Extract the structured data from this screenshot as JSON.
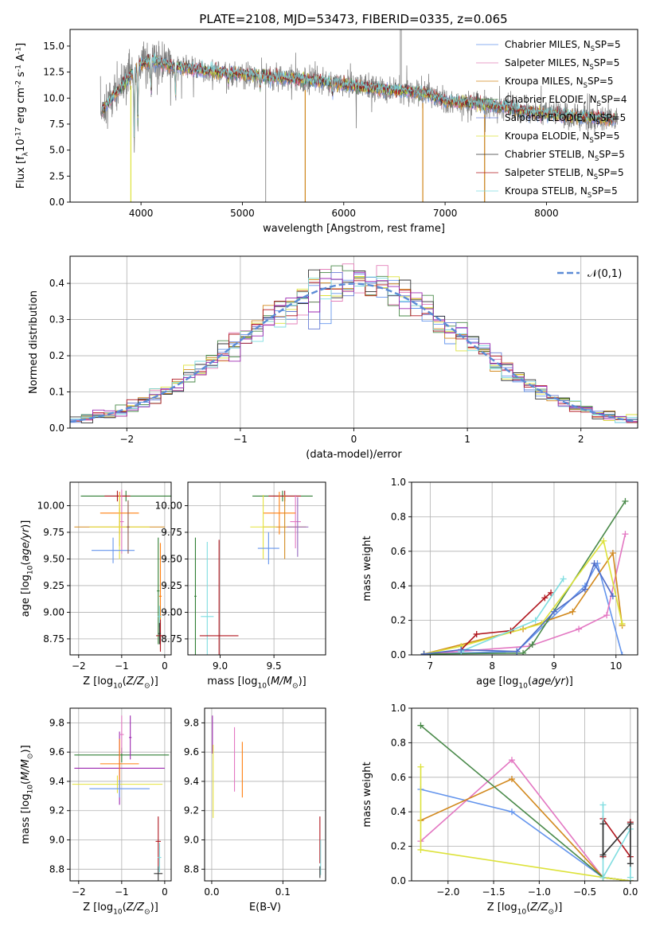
{
  "title": "PLATE=2108, MJD=53473, FIBERID=0335, z=0.065",
  "chart_data": [
    {
      "id": "spectrum",
      "type": "line",
      "xlabel": "wavelength [Angstrom, rest frame]",
      "ylabel": "Flux [f$_\\lambda$10$^{-17}$ erg cm$^{-2}$ s$^{-1}$ A$^{-1}$]",
      "xlim": [
        3300,
        8900
      ],
      "ylim": [
        0,
        16.6
      ],
      "xticks": [
        4000,
        5000,
        6000,
        7000,
        8000
      ],
      "yticks": [
        0.0,
        2.5,
        5.0,
        7.5,
        10.0,
        12.5,
        15.0
      ],
      "legend_position": "top-right",
      "series": [
        {
          "name": "Chabrier MILES, N_SSP=5",
          "color": "#6495ed"
        },
        {
          "name": "Salpeter MILES, N_SSP=5",
          "color": "#e37fb9"
        },
        {
          "name": "Kroupa MILES, N_SSP=5",
          "color": "#d2891e"
        },
        {
          "name": "Chabrier ELODIE, N_SSP=4",
          "color": "#4a8a4a"
        },
        {
          "name": "Salpeter ELODIE, N_SSP=5",
          "color": "#6a7fd6"
        },
        {
          "name": "Kroupa ELODIE, N_SSP=5",
          "color": "#dde23a"
        },
        {
          "name": "Chabrier STELIB, N_SSP=5",
          "color": "#333333"
        },
        {
          "name": "Salpeter STELIB, N_SSP=5",
          "color": "#b0161e"
        },
        {
          "name": "Kroupa STELIB, N_SSP=5",
          "color": "#7fdde0"
        }
      ],
      "data_color": "#808080",
      "continuum": {
        "x": [
          3600,
          3700,
          3800,
          3900,
          4000,
          4100,
          4300,
          4500,
          4700,
          5000,
          5300,
          5600,
          6000,
          6300,
          6600,
          6800,
          7000,
          7300,
          7600,
          7800,
          8000,
          8300,
          8600,
          8700
        ],
        "y": [
          8.6,
          9.8,
          11.0,
          12.2,
          13.3,
          13.6,
          13.1,
          12.8,
          12.6,
          12.3,
          12.0,
          11.8,
          11.3,
          10.9,
          10.7,
          10.5,
          9.7,
          9.5,
          9.1,
          8.7,
          8.5,
          8.2,
          8.0,
          7.9
        ]
      },
      "absorption_lines": [
        {
          "x": 3933,
          "y": 5.5
        },
        {
          "x": 3968,
          "y": 7.5
        },
        {
          "x": 4100,
          "y": 10.5
        },
        {
          "x": 4340,
          "y": 10.2
        },
        {
          "x": 4861,
          "y": 11.3
        },
        {
          "x": 5175,
          "y": 10.9
        },
        {
          "x": 5890,
          "y": 10.2
        },
        {
          "x": 6563,
          "y": 11.0
        }
      ],
      "spikes": [
        {
          "x": 5230,
          "lo": 0.0,
          "hi": 12.0
        },
        {
          "x": 5620,
          "lo": 0.0,
          "hi": 11.5
        },
        {
          "x": 6563,
          "lo": 9.5,
          "hi": 16.6
        },
        {
          "x": 6780,
          "lo": 0.0,
          "hi": 11.0
        },
        {
          "x": 7390,
          "lo": 0.0,
          "hi": 10.8
        }
      ]
    },
    {
      "id": "residuals",
      "type": "line",
      "xlabel": "(data-model)/error",
      "ylabel": "Normed distribution",
      "xlim": [
        -2.5,
        2.5
      ],
      "ylim": [
        0,
        0.475
      ],
      "xticks": [
        -2,
        -1,
        0,
        1,
        2
      ],
      "yticks": [
        0.0,
        0.1,
        0.2,
        0.3,
        0.4
      ],
      "grid": true,
      "legend_position": "top-right",
      "legend_label": "$\\mathcal{N}(0,1)$",
      "gaussian": {
        "mu": 0,
        "sigma": 1,
        "color": "#5b8bd6"
      },
      "bin_width": 0.1
    },
    {
      "id": "age-vs-Z",
      "type": "scatter",
      "xlabel": "Z [log$_{10}$($Z/Z_\\odot$)]",
      "ylabel": "age  [log$_{10}$($age/yr$)]",
      "xlim": [
        -2.2,
        0.15
      ],
      "ylim": [
        8.6,
        10.22
      ],
      "xticks": [
        -2,
        -1,
        0
      ],
      "yticks": [
        8.75,
        9.0,
        9.25,
        9.5,
        9.75,
        10.0
      ],
      "grid": true,
      "points": [
        {
          "x": -0.9,
          "xerr": 1.05,
          "y": 10.09,
          "yerr": 0.05,
          "color": "#2e7d32"
        },
        {
          "x": -1.1,
          "xerr": 0.3,
          "y": 10.09,
          "yerr": 0.05,
          "color": "#b0161e"
        },
        {
          "x": -1.0,
          "xerr": 0.05,
          "y": 9.85,
          "yerr": 0.3,
          "color": "#e377c2"
        },
        {
          "x": -1.05,
          "xerr": 0.45,
          "y": 9.93,
          "yerr": 0.2,
          "color": "#ff7f0e"
        },
        {
          "x": -1.05,
          "xerr": 1.05,
          "y": 9.8,
          "yerr": 0.18,
          "color": "#d2891e"
        },
        {
          "x": -1.05,
          "xerr": 0.7,
          "y": 9.8,
          "yerr": 0.3,
          "color": "#e5e23a"
        },
        {
          "x": -1.2,
          "xerr": 0.5,
          "y": 9.58,
          "yerr": 0.12,
          "color": "#6495ed"
        },
        {
          "x": -0.85,
          "xerr": 0.03,
          "y": 9.8,
          "yerr": 0.25,
          "color": "#8c564b"
        },
        {
          "x": -0.15,
          "xerr": 0.03,
          "y": 9.2,
          "yerr": 0.5,
          "color": "#2e7d32"
        },
        {
          "x": -0.1,
          "xerr": 0.03,
          "y": 9.15,
          "yerr": 0.5,
          "color": "#ff7f0e"
        },
        {
          "x": -0.12,
          "xerr": 0.04,
          "y": 8.96,
          "yerr": 0.1,
          "color": "#7fdde0"
        },
        {
          "x": -0.1,
          "xerr": 0.1,
          "y": 8.78,
          "yerr": 0.15,
          "color": "#b0161e"
        },
        {
          "x": -0.12,
          "xerr": 0.03,
          "y": 8.8,
          "yerr": 0.1,
          "color": "#333333"
        }
      ]
    },
    {
      "id": "age-vs-mass",
      "type": "scatter",
      "xlabel": "mass [log$_{10}$($M/M_\\odot$)]",
      "ylabel": "",
      "xlim": [
        8.7,
        9.98
      ],
      "ylim": [
        8.6,
        10.22
      ],
      "xticks": [
        9.0,
        9.5
      ],
      "yticks": [
        8.75,
        9.0,
        9.25,
        9.5,
        9.75,
        10.0
      ],
      "grid": true,
      "points": [
        {
          "x": 9.58,
          "xerr": 0.28,
          "y": 10.09,
          "yerr": 0.05,
          "color": "#2e7d32"
        },
        {
          "x": 9.6,
          "xerr": 0.15,
          "y": 10.09,
          "yerr": 0.05,
          "color": "#b0161e"
        },
        {
          "x": 9.7,
          "xerr": 0.05,
          "y": 9.85,
          "yerr": 0.25,
          "color": "#e377c2"
        },
        {
          "x": 9.55,
          "xerr": 0.15,
          "y": 9.93,
          "yerr": 0.2,
          "color": "#ff7f0e"
        },
        {
          "x": 9.6,
          "xerr": 0.2,
          "y": 9.8,
          "yerr": 0.3,
          "color": "#d2891e"
        },
        {
          "x": 9.4,
          "xerr": 0.12,
          "y": 9.8,
          "yerr": 0.3,
          "color": "#e5e23a"
        },
        {
          "x": 9.45,
          "xerr": 0.1,
          "y": 9.6,
          "yerr": 0.15,
          "color": "#6495ed"
        },
        {
          "x": 9.72,
          "xerr": 0.1,
          "y": 9.8,
          "yerr": 0.28,
          "color": "#9467bd"
        },
        {
          "x": 8.77,
          "xerr": 0.01,
          "y": 9.15,
          "yerr": 0.55,
          "color": "#2e7d32"
        },
        {
          "x": 8.88,
          "xerr": 0.06,
          "y": 8.96,
          "yerr": 0.7,
          "color": "#7fdde0"
        },
        {
          "x": 8.99,
          "xerr": 0.18,
          "y": 8.78,
          "yerr": 0.9,
          "color": "#b0161e"
        }
      ]
    },
    {
      "id": "mass-weight-vs-age",
      "type": "line",
      "xlabel": "age  [log$_{10}$($age/yr$)]",
      "ylabel": "mass weight",
      "xlim": [
        6.7,
        10.35
      ],
      "ylim": [
        0,
        1.0
      ],
      "xticks": [
        7,
        8,
        9,
        10
      ],
      "yticks": [
        0.0,
        0.2,
        0.4,
        0.6,
        0.8,
        1.0
      ],
      "grid": true,
      "series": [
        {
          "color": "#6495ed",
          "x": [
            6.9,
            8.4,
            9.5,
            9.7,
            10.1
          ],
          "y": [
            0.005,
            0.02,
            0.4,
            0.53,
            0.0
          ]
        },
        {
          "color": "#e377c2",
          "x": [
            6.9,
            8.6,
            9.4,
            9.85,
            10.15
          ],
          "y": [
            0.005,
            0.05,
            0.15,
            0.23,
            0.7
          ]
        },
        {
          "color": "#d2891e",
          "x": [
            6.9,
            8.5,
            9.3,
            9.95,
            10.1
          ],
          "y": [
            0.005,
            0.15,
            0.25,
            0.59,
            0.17
          ]
        },
        {
          "color": "#4a8a4a",
          "x": [
            6.9,
            8.5,
            8.65,
            10.15
          ],
          "y": [
            0.005,
            0.01,
            0.06,
            0.89
          ]
        },
        {
          "color": "#dde23a",
          "x": [
            6.9,
            7.5,
            8.8,
            9.8,
            10.1
          ],
          "y": [
            0.005,
            0.05,
            0.18,
            0.66,
            0.18
          ]
        },
        {
          "color": "#b0161e",
          "x": [
            7.5,
            7.75,
            8.3,
            8.85,
            8.95
          ],
          "y": [
            0.03,
            0.12,
            0.14,
            0.33,
            0.36
          ]
        },
        {
          "color": "#7fdde0",
          "x": [
            7.5,
            8.7,
            9.15
          ],
          "y": [
            0.02,
            0.2,
            0.44
          ]
        },
        {
          "color": "#4e6cc7",
          "x": [
            6.9,
            7.5,
            8.4,
            9.0,
            9.5,
            9.65,
            9.95
          ],
          "y": [
            0.005,
            0.03,
            0.02,
            0.25,
            0.38,
            0.53,
            0.34
          ]
        }
      ]
    },
    {
      "id": "mass-vs-Z",
      "type": "scatter",
      "xlabel": "Z [log$_{10}$($Z/Z_\\odot$)]",
      "ylabel": "mass [log$_{10}$($M/M_\\odot$)]",
      "xlim": [
        -2.2,
        0.15
      ],
      "ylim": [
        8.72,
        9.9
      ],
      "xticks": [
        -2,
        -1,
        0
      ],
      "yticks": [
        8.8,
        9.0,
        9.2,
        9.4,
        9.6,
        9.8
      ],
      "grid": true,
      "points": [
        {
          "x": -1.0,
          "xerr": 1.1,
          "y": 9.58,
          "yerr": 0.05,
          "color": "#2e7d32"
        },
        {
          "x": -1.05,
          "xerr": 1.05,
          "y": 9.49,
          "yerr": 0.25,
          "color": "#9c27b0"
        },
        {
          "x": -1.0,
          "xerr": 0.05,
          "y": 9.72,
          "yerr": 0.13,
          "color": "#e377c2"
        },
        {
          "x": -0.8,
          "xerr": 0.03,
          "y": 9.7,
          "yerr": 0.15,
          "color": "#9c27b0"
        },
        {
          "x": -1.05,
          "xerr": 0.45,
          "y": 9.52,
          "yerr": 0.17,
          "color": "#ff7f0e"
        },
        {
          "x": -1.1,
          "xerr": 1.05,
          "y": 9.38,
          "yerr": 0.06,
          "color": "#e5e23a"
        },
        {
          "x": -1.05,
          "xerr": 0.7,
          "y": 9.35,
          "yerr": 0.06,
          "color": "#6495ed"
        },
        {
          "x": -0.15,
          "xerr": 0.06,
          "y": 8.99,
          "yerr": 0.17,
          "color": "#b0161e"
        },
        {
          "x": -0.12,
          "xerr": 0.04,
          "y": 8.88,
          "yerr": 0.1,
          "color": "#7fdde0"
        },
        {
          "x": -0.15,
          "xerr": 0.1,
          "y": 8.77,
          "yerr": 0.05,
          "color": "#333333"
        }
      ]
    },
    {
      "id": "mass-vs-EBV",
      "type": "scatter",
      "xlabel": "E(B-V)",
      "ylabel": "",
      "xlim": [
        -0.01,
        0.16
      ],
      "ylim": [
        8.72,
        9.9
      ],
      "xticks": [
        0.0,
        0.1
      ],
      "yticks": [
        8.8,
        9.0,
        9.2,
        9.4,
        9.6,
        9.8
      ],
      "grid": true,
      "points": [
        {
          "x": 0.001,
          "xerr": 0,
          "y": 9.72,
          "yerr": 0.13,
          "color": "#9c27b0"
        },
        {
          "x": 0.002,
          "xerr": 0,
          "y": 9.4,
          "yerr": 0.25,
          "color": "#e5e23a"
        },
        {
          "x": 0.032,
          "xerr": 0,
          "y": 9.55,
          "yerr": 0.22,
          "color": "#e377c2"
        },
        {
          "x": 0.043,
          "xerr": 0,
          "y": 9.48,
          "yerr": 0.19,
          "color": "#ff7f0e"
        },
        {
          "x": 0.152,
          "xerr": 0,
          "y": 9.0,
          "yerr": 0.16,
          "color": "#b0161e"
        },
        {
          "x": 0.153,
          "xerr": 0,
          "y": 8.88,
          "yerr": 0.12,
          "color": "#7fdde0"
        },
        {
          "x": 0.152,
          "xerr": 0,
          "y": 8.78,
          "yerr": 0.04,
          "color": "#333333"
        }
      ]
    },
    {
      "id": "mass-weight-vs-Z",
      "type": "line",
      "xlabel": "Z [log$_{10}$($Z/Z_\\odot$)]",
      "ylabel": "mass weight",
      "xlim": [
        -2.4,
        0.08
      ],
      "ylim": [
        0,
        1.0
      ],
      "xticks": [
        -2.0,
        -1.5,
        -1.0,
        -0.5,
        0.0
      ],
      "yticks": [
        0.0,
        0.2,
        0.4,
        0.6,
        0.8,
        1.0
      ],
      "grid": true,
      "series": [
        {
          "color": "#6495ed",
          "x": [
            -2.3,
            -1.3,
            -0.3,
            0.0
          ],
          "y": [
            0.53,
            0.4,
            0.02,
            0.0
          ]
        },
        {
          "color": "#e377c2",
          "x": [
            -2.3,
            -1.3,
            -0.3,
            0.0
          ],
          "y": [
            0.23,
            0.7,
            0.02,
            0.0
          ]
        },
        {
          "color": "#d2891e",
          "x": [
            -2.3,
            -1.3,
            -0.3,
            0.0
          ],
          "y": [
            0.35,
            0.59,
            0.02,
            0.0
          ]
        },
        {
          "color": "#4a8a4a",
          "x": [
            -2.3,
            -0.3,
            0.0
          ],
          "y": [
            0.9,
            0.02,
            0.0
          ]
        },
        {
          "color": "#dde23a",
          "x": [
            -2.3,
            -2.3,
            -0.3,
            0.0
          ],
          "y": [
            0.66,
            0.18,
            0.02,
            0.0
          ]
        },
        {
          "color": "#b0161e",
          "x": [
            -0.3,
            -0.3,
            0.0,
            0.0
          ],
          "y": [
            0.14,
            0.36,
            0.14,
            0.34
          ]
        },
        {
          "color": "#7fdde0",
          "x": [
            -0.3,
            -0.3,
            0.0,
            0.0
          ],
          "y": [
            0.44,
            0.02,
            0.3,
            0.02
          ]
        },
        {
          "color": "#333333",
          "x": [
            -0.3,
            -0.3,
            0.0,
            0.0
          ],
          "y": [
            0.33,
            0.15,
            0.33,
            0.1
          ]
        }
      ]
    }
  ]
}
